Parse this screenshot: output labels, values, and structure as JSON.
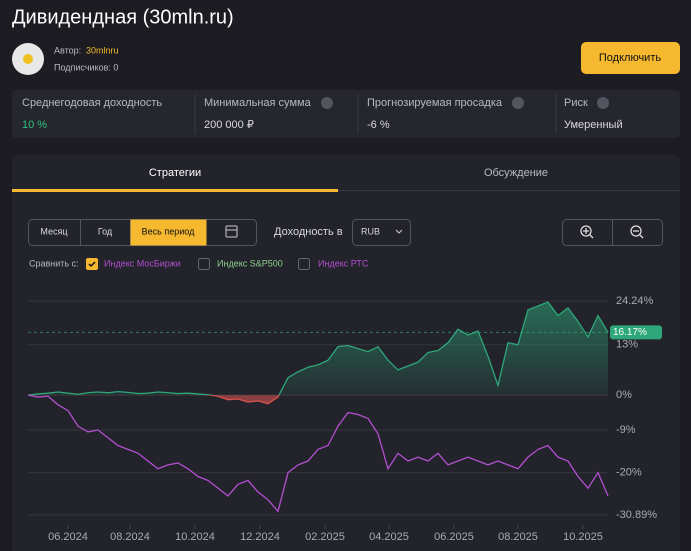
{
  "header": {
    "title": "Дивидендная (30mln.ru)",
    "author_label": "Автор:",
    "author": "30mlnru",
    "subscribers": "Подписчиков: 0",
    "button": "Подключить"
  },
  "stats": [
    {
      "label": "Среднегодовая доходность",
      "value": "10 %"
    },
    {
      "label": "Минимальная сумма",
      "value": "200 000 ₽"
    },
    {
      "label": "Прогнозируемая просадка",
      "value": "-6 %"
    },
    {
      "label": "Риск",
      "value": "Умеренный"
    }
  ],
  "tabs": [
    "Стратегии",
    "Обсуждение"
  ],
  "periods": [
    "Месяц",
    "Год",
    "Весь период"
  ],
  "currency_label": "Доходность в",
  "currency": "RUB",
  "compare_label": "Сравнить с:",
  "compare_options": [
    {
      "name": "Индекс S&P500",
      "color": "#8fd18f"
    },
    {
      "name": "Индекс РТС",
      "color": "#b34fd0"
    }
  ],
  "chart_data": {
    "type": "line",
    "xlim": [
      0,
      58
    ],
    "xticks": [
      {
        "value": 4,
        "label": "06.2024"
      },
      {
        "value": 10.2,
        "label": "08.2024"
      },
      {
        "value": 16.7,
        "label": "10.2024"
      },
      {
        "value": 23.2,
        "label": "12.2024"
      },
      {
        "value": 29.7,
        "label": "02.2025"
      },
      {
        "value": 36.1,
        "label": "04.2025"
      },
      {
        "value": 42.6,
        "label": "06.2025"
      },
      {
        "value": 49,
        "label": "08.2025"
      },
      {
        "value": 55.5,
        "label": "10.2025"
      }
    ],
    "ylim": [
      -33.5,
      28.4
    ],
    "yticks": [
      {
        "value": 24.24,
        "label": "24.24%"
      },
      {
        "value": 13,
        "label": "13%"
      },
      {
        "value": 0,
        "label": "0%"
      },
      {
        "value": -9,
        "label": "-9%"
      },
      {
        "value": -20,
        "label": "-20%"
      },
      {
        "value": -30.89,
        "label": "-30.89%"
      }
    ],
    "last_value": {
      "value": 16.17,
      "label": "16.17%"
    },
    "grid": true,
    "series": [
      {
        "color": "#2ea87a",
        "negative_color": "#d9534f",
        "values": [
          0,
          0.3,
          0.5,
          0.8,
          0.5,
          0.2,
          0.6,
          0.8,
          0.6,
          0.9,
          0.7,
          0.4,
          0.5,
          0.8,
          0.6,
          0.4,
          0.5,
          0.3,
          0.1,
          -0.3,
          -1.2,
          -1.0,
          -1.8,
          -1.5,
          -2.2,
          -0.5,
          4.5,
          6.0,
          7.2,
          7.8,
          9.0,
          12.5,
          12.8,
          12.0,
          11.2,
          12.5,
          9.0,
          6.5,
          7.5,
          8.5,
          11.0,
          11.5,
          13.5,
          17.0,
          15.5,
          16.5,
          10.0,
          2.5,
          13.5,
          13.0,
          22.0,
          23.0,
          24.0,
          20.5,
          22.5,
          19.0,
          15.0,
          20.5,
          16.17
        ]
      },
      {
        "name": "Индекс МосБиржи",
        "color": "#b34fd0",
        "values": [
          0,
          -0.5,
          -0.3,
          -2.5,
          -4,
          -8,
          -9.5,
          -9,
          -11,
          -13,
          -14,
          -15,
          -17,
          -19,
          -18,
          -17.5,
          -19,
          -21,
          -22,
          -24,
          -26,
          -23,
          -22,
          -25,
          -27,
          -30,
          -20,
          -18,
          -17,
          -14,
          -13,
          -8,
          -4.5,
          -5,
          -6,
          -10,
          -19,
          -15,
          -17,
          -16,
          -17,
          -15,
          -18,
          -17,
          -16,
          -17,
          -18,
          -17,
          -18,
          -19,
          -16,
          -14,
          -13,
          -16,
          -17,
          -21,
          -24,
          -20,
          -26
        ]
      }
    ]
  }
}
